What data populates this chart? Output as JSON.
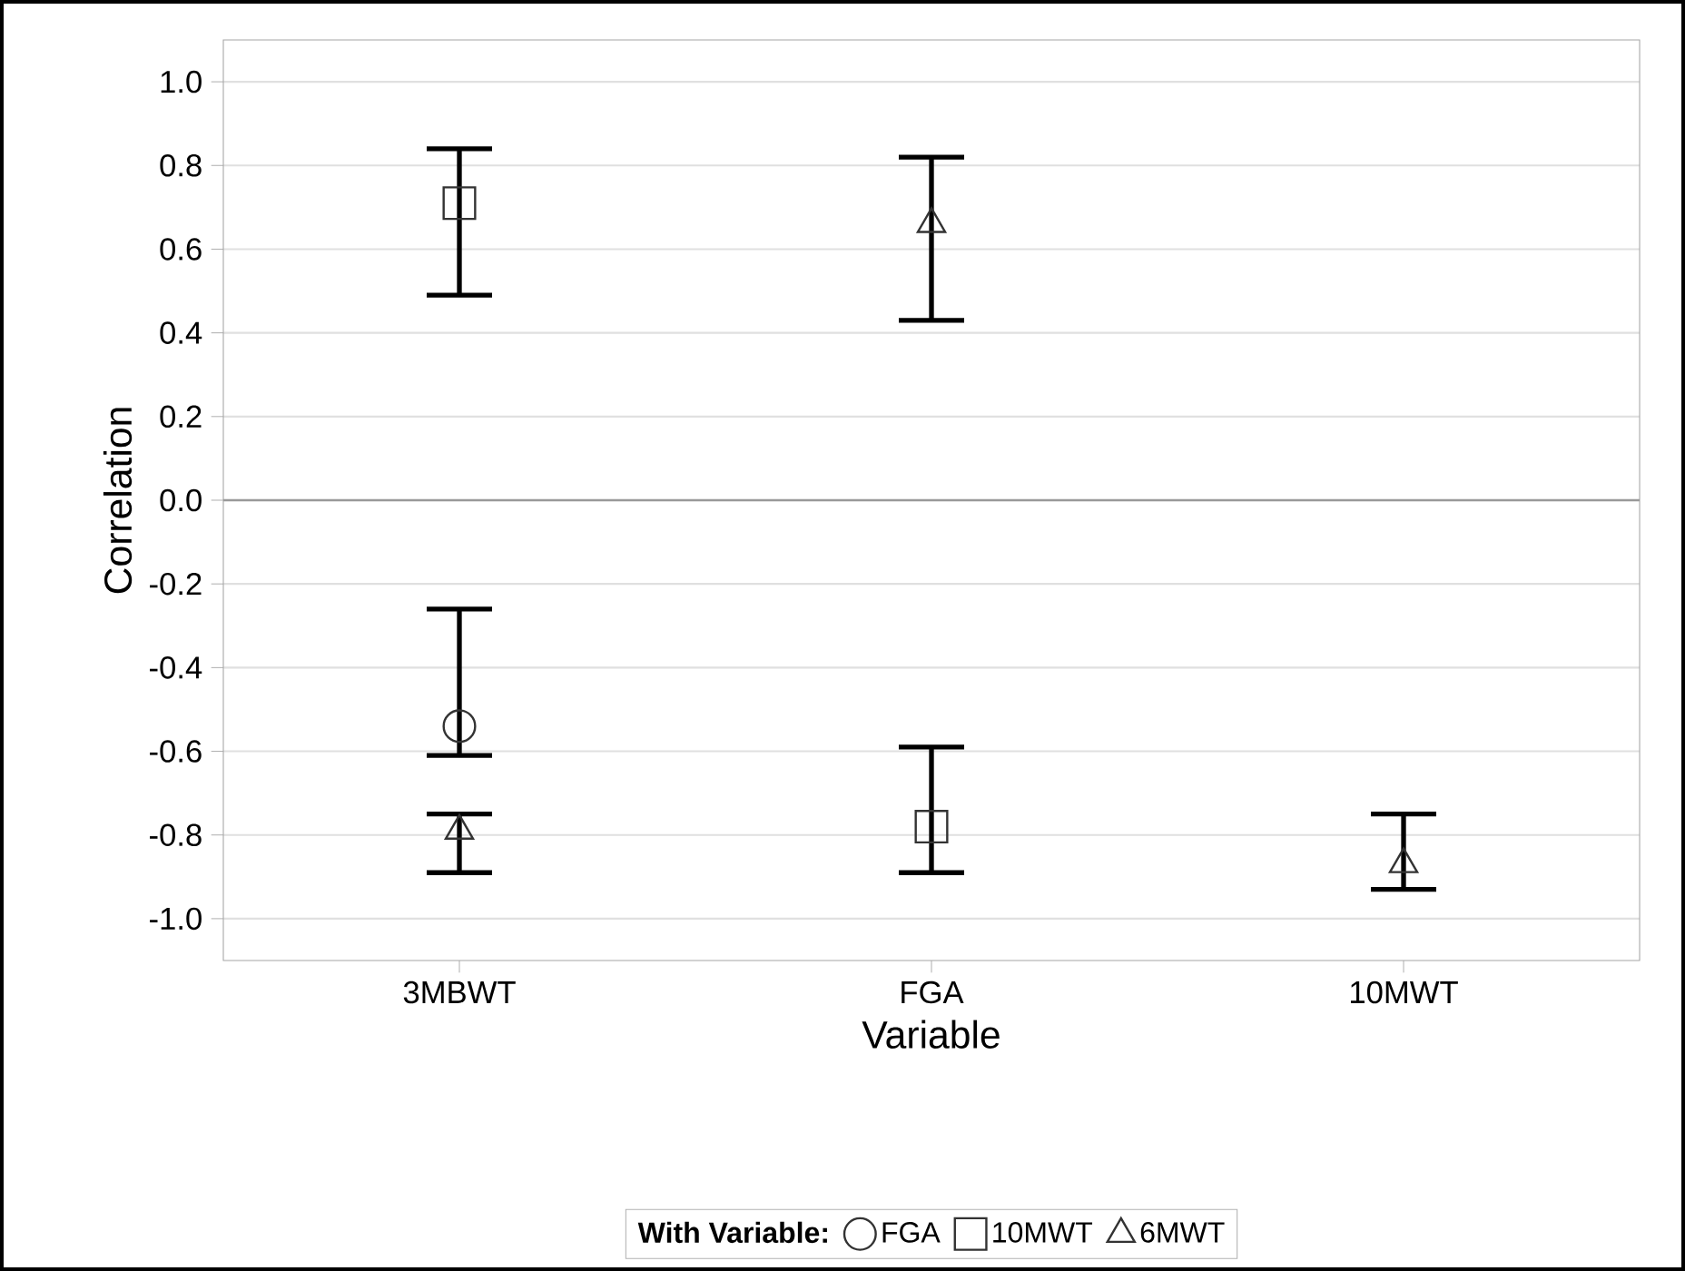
{
  "chart_data": {
    "type": "scatter",
    "xlabel": "Variable",
    "ylabel": "Correlation",
    "legend_title": "With Variable:",
    "categories": [
      "3MBWT",
      "FGA",
      "10MWT"
    ],
    "series": [
      {
        "name": "FGA",
        "color": "#333333",
        "marker": "circle",
        "values": [
          -0.54,
          null,
          null
        ],
        "errors": [
          [
            -0.61,
            -0.26
          ],
          null,
          null
        ]
      },
      {
        "name": "10MWT",
        "color": "#333333",
        "marker": "square",
        "values": [
          0.71,
          -0.78,
          null
        ],
        "errors": [
          [
            0.49,
            0.84
          ],
          [
            -0.89,
            -0.59
          ],
          null
        ]
      },
      {
        "name": "6MWT",
        "color": "#333333",
        "marker": "triangle",
        "values": [
          -0.79,
          0.66,
          -0.87
        ],
        "errors": [
          [
            -0.89,
            -0.75
          ],
          [
            0.43,
            0.82
          ],
          [
            -0.93,
            -0.75
          ]
        ]
      }
    ],
    "ylim": [
      -1.1,
      1.1
    ],
    "yticks": [
      {
        "value": -1.0,
        "label": "-1.0"
      },
      {
        "value": -0.8,
        "label": "-0.8"
      },
      {
        "value": -0.6,
        "label": "-0.6"
      },
      {
        "value": -0.4,
        "label": "-0.4"
      },
      {
        "value": -0.2,
        "label": "-0.2"
      },
      {
        "value": 0.0,
        "label": "0.0"
      },
      {
        "value": 0.2,
        "label": "0.2"
      },
      {
        "value": 0.4,
        "label": "0.4"
      },
      {
        "value": 0.6,
        "label": "0.6"
      },
      {
        "value": 0.8,
        "label": "0.8"
      },
      {
        "value": 1.0,
        "label": "1.0"
      }
    ],
    "ref_lines": [
      {
        "axis": "y",
        "value": 0.0,
        "color": "#999999"
      }
    ],
    "grid": "y",
    "legend": "bottom"
  }
}
